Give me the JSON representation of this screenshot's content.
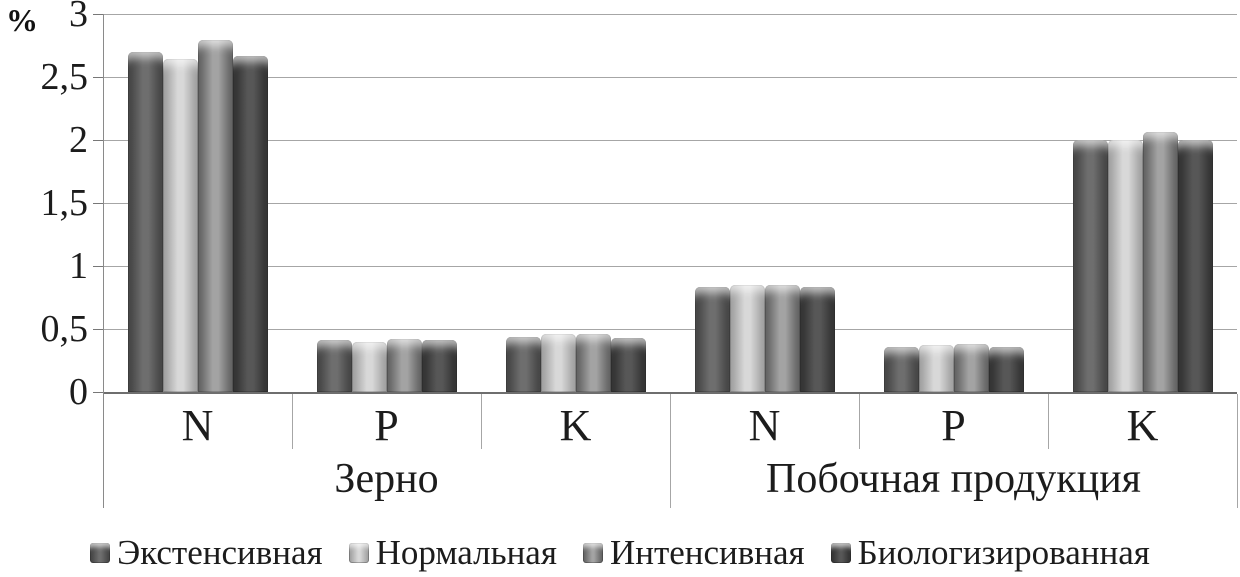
{
  "chart_data": {
    "type": "bar",
    "title": "",
    "ylabel": "%",
    "xlabel": "",
    "ylim": [
      0,
      3
    ],
    "grid": true,
    "legend_position": "bottom",
    "yticks": [
      {
        "label": "3",
        "value": 3
      },
      {
        "label": "2,5",
        "value": 2.5
      },
      {
        "label": "2",
        "value": 2
      },
      {
        "label": "1,5",
        "value": 1.5
      },
      {
        "label": "1",
        "value": 1
      },
      {
        "label": "0,5",
        "value": 0.5
      },
      {
        "label": "0",
        "value": 0
      }
    ],
    "categories": [
      "N",
      "P",
      "K",
      "N",
      "P",
      "K"
    ],
    "group_labels": [
      "Зерно",
      "Побочная продукция"
    ],
    "groups_span": 3,
    "series": [
      {
        "name": "Экстенсивная",
        "values": [
          2.7,
          0.41,
          0.44,
          0.83,
          0.36,
          2.0
        ]
      },
      {
        "name": "Нормальная",
        "values": [
          2.64,
          0.4,
          0.46,
          0.85,
          0.37,
          2.0
        ]
      },
      {
        "name": "Интенсивная",
        "values": [
          2.79,
          0.42,
          0.46,
          0.85,
          0.38,
          2.06
        ]
      },
      {
        "name": "Биологизированная",
        "values": [
          2.67,
          0.41,
          0.43,
          0.83,
          0.36,
          2.0
        ]
      }
    ]
  },
  "colors": {
    "series": [
      {
        "edge": "#3e3e3e",
        "mid": "#6e6e6e"
      },
      {
        "edge": "#999999",
        "mid": "#d8d8d8"
      },
      {
        "edge": "#5a5a5a",
        "mid": "#a3a3a3"
      },
      {
        "edge": "#2c2c2c",
        "mid": "#575757"
      }
    ],
    "gridline": "#a6a6a6",
    "axis": "#6e6e6e",
    "text": "#1c1c1c",
    "background": "#ffffff"
  }
}
